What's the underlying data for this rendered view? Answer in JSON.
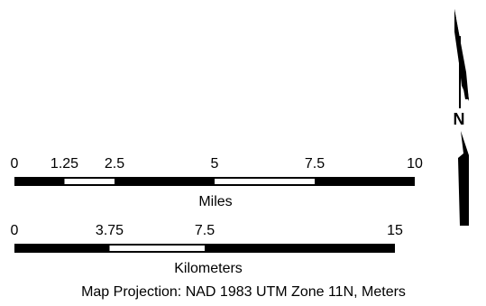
{
  "scale_bars": [
    {
      "unit_label": "Miles",
      "max": 10,
      "ticks": [
        {
          "label": "0",
          "value": 0
        },
        {
          "label": "1.25",
          "value": 1.25
        },
        {
          "label": "2.5",
          "value": 2.5
        },
        {
          "label": "5",
          "value": 5
        },
        {
          "label": "7.5",
          "value": 7.5
        },
        {
          "label": "10",
          "value": 10
        }
      ],
      "white_segments": [
        [
          1.25,
          2.5
        ],
        [
          5,
          7.5
        ]
      ]
    },
    {
      "unit_label": "Kilometers",
      "max": 15,
      "ticks": [
        {
          "label": "0",
          "value": 0
        },
        {
          "label": "3.75",
          "value": 3.75
        },
        {
          "label": "7.5",
          "value": 7.5
        },
        {
          "label": "15",
          "value": 15
        }
      ],
      "white_segments": [
        [
          3.75,
          7.5
        ]
      ]
    }
  ],
  "north_arrow": {
    "label": "N"
  },
  "projection_text": "Map Projection: NAD 1983 UTM Zone 11N, Meters",
  "colors": {
    "bar": "#000000",
    "segment_gap": "#ffffff"
  }
}
